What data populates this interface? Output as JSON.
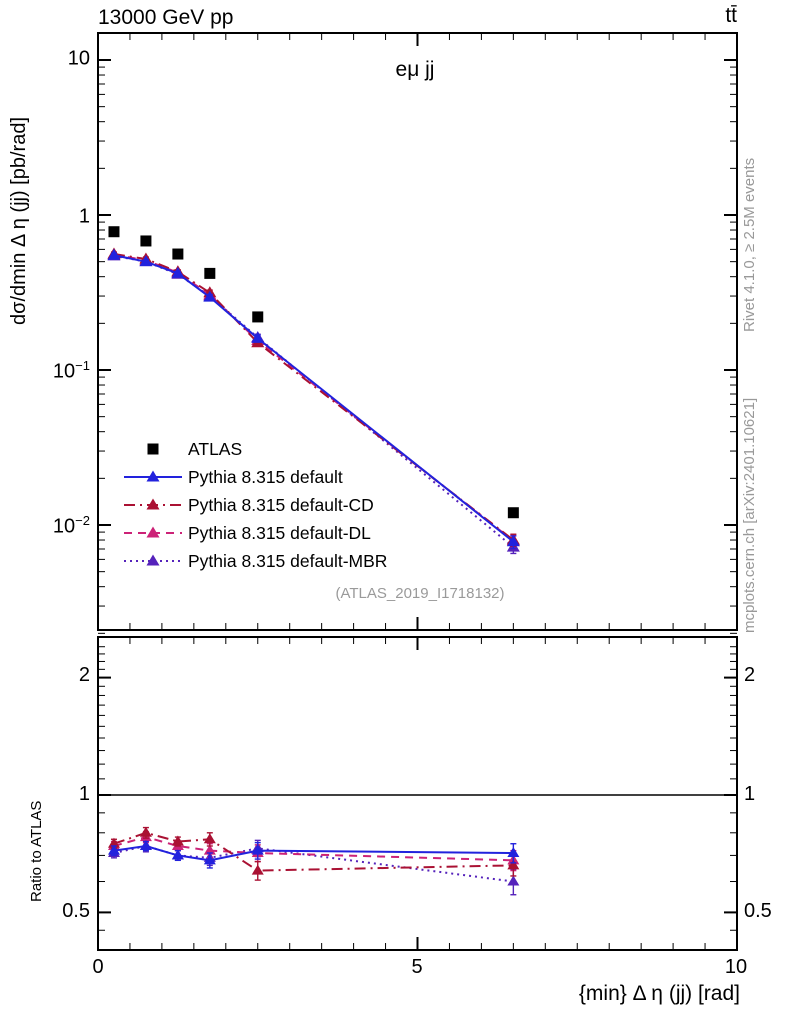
{
  "header": {
    "left": "13000 GeV pp",
    "right": "tt̄"
  },
  "panel": {
    "title": "eμ jj",
    "watermark": "(ATLAS_2019_I1718132)"
  },
  "side_notes": {
    "rivet": "Rivet 4.1.0, ≥ 2.5M events",
    "mcplots": "mcplots.cern.ch [arXiv:2401.10621]"
  },
  "axes": {
    "y_main": {
      "label": "dσ/dmin Δ η (jj) [pb/rad]",
      "ticks": [
        {
          "base": "10",
          "exp": ""
        },
        {
          "base": "1",
          "exp": ""
        },
        {
          "base": "10",
          "exp": "−1"
        },
        {
          "base": "10",
          "exp": "−2"
        }
      ]
    },
    "y_ratio": {
      "label": "Ratio to ATLAS",
      "ticks": [
        "2",
        "1",
        "0.5"
      ]
    },
    "x": {
      "label": "{min} Δ η (jj) [rad]",
      "ticks": [
        "0",
        "5",
        "10"
      ]
    }
  },
  "chart_data": {
    "type": "line",
    "title": "eμ jj",
    "xlabel": "{min} Δ η (jj) [rad]",
    "ylabel": "dσ/dmin Δ η (jj) [pb/rad]",
    "ratio_ylabel": "Ratio to ATLAS",
    "x": [
      0.25,
      0.75,
      1.25,
      1.75,
      2.5,
      6.5
    ],
    "xlim": [
      0,
      10
    ],
    "ylim_main_log": [
      0.002,
      15
    ],
    "ylim_ratio_log": [
      0.4,
      2.5
    ],
    "ratio_reference": 1,
    "err_rel": [
      0.03,
      0.03,
      0.03,
      0.04,
      0.05,
      0.09
    ],
    "series": [
      {
        "name": "ATLAS",
        "color": "#000000",
        "marker": "square",
        "line": "none",
        "values": [
          0.78,
          0.68,
          0.56,
          0.42,
          0.22,
          0.012
        ]
      },
      {
        "name": "Pythia 8.315 default",
        "color": "#2222dd",
        "marker": "triangle",
        "line": "solid",
        "values": [
          0.55,
          0.5,
          0.42,
          0.295,
          0.16,
          0.0078
        ],
        "ratio": [
          0.72,
          0.74,
          0.7,
          0.68,
          0.72,
          0.71
        ],
        "ratio_err": [
          0.02,
          0.02,
          0.02,
          0.03,
          0.035,
          0.04
        ]
      },
      {
        "name": "Pythia 8.315 default-CD",
        "color": "#aa1133",
        "marker": "triangle",
        "line": "dashdot",
        "values": [
          0.56,
          0.52,
          0.43,
          0.315,
          0.15,
          0.008
        ],
        "ratio": [
          0.75,
          0.8,
          0.76,
          0.77,
          0.64,
          0.66
        ],
        "ratio_err": [
          0.02,
          0.025,
          0.02,
          0.03,
          0.035,
          0.04
        ]
      },
      {
        "name": "Pythia 8.315 default-DL",
        "color": "#cc2277",
        "marker": "triangle",
        "line": "dashed",
        "values": [
          0.555,
          0.51,
          0.425,
          0.305,
          0.155,
          0.0079
        ],
        "ratio": [
          0.74,
          0.78,
          0.74,
          0.72,
          0.71,
          0.68
        ],
        "ratio_err": [
          0.02,
          0.025,
          0.02,
          0.03,
          0.035,
          0.04
        ]
      },
      {
        "name": "Pythia 8.315 default-MBR",
        "color": "#5522bb",
        "marker": "triangle",
        "line": "dotted",
        "values": [
          0.545,
          0.5,
          0.415,
          0.3,
          0.162,
          0.0072
        ],
        "ratio": [
          0.71,
          0.74,
          0.7,
          0.69,
          0.73,
          0.6
        ],
        "ratio_err": [
          0.02,
          0.025,
          0.02,
          0.03,
          0.035,
          0.045
        ]
      }
    ]
  }
}
